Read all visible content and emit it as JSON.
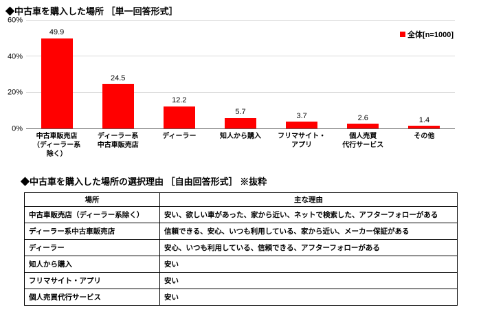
{
  "chart_title": "◆中古車を購入した場所 ［単一回答形式］",
  "legend": {
    "label": "全体[n=1000]"
  },
  "colors": {
    "bar": "#ff0000",
    "gridline": "#d9d9d9",
    "axis_line": "#595959",
    "text": "#000000"
  },
  "chart_data": {
    "type": "bar",
    "title": "中古車を購入した場所",
    "categories": [
      "中古車販売店\n（ディーラー系\n除く）",
      "ディーラー系\n中古車販売店",
      "ディーラー",
      "知人から購入",
      "フリマサイト・\nアプリ",
      "個人売買\n代行サービス",
      "その他"
    ],
    "values": [
      49.9,
      24.5,
      12.2,
      5.7,
      3.7,
      2.6,
      1.4
    ],
    "xlabel": "",
    "ylabel": "",
    "ylim": [
      0,
      60
    ],
    "yticks": [
      0,
      20,
      40,
      60
    ],
    "ytick_labels": [
      "0%",
      "20%",
      "40%",
      "60%"
    ],
    "grid": true,
    "legend_position": "top-right",
    "legend_entries": [
      "全体[n=1000]"
    ]
  },
  "table": {
    "title": "◆中古車を購入した場所の選択理由 ［自由回答形式］ ※抜粋",
    "headers": [
      "場所",
      "主な理由"
    ],
    "rows": [
      [
        "中古車販売店（ディーラー系除く）",
        "安い、欲しい車があった、家から近い、ネットで検索した、アフターフォローがある"
      ],
      [
        "ディーラー系中古車販売店",
        "信頼できる、安心、いつも利用している、家から近い、メーカー保証がある"
      ],
      [
        "ディーラー",
        "安心、いつも利用している、信頼できる、アフターフォローがある"
      ],
      [
        "知人から購入",
        "安い"
      ],
      [
        "フリマサイト・アプリ",
        "安い"
      ],
      [
        "個人売買代行サービス",
        "安い"
      ]
    ]
  }
}
